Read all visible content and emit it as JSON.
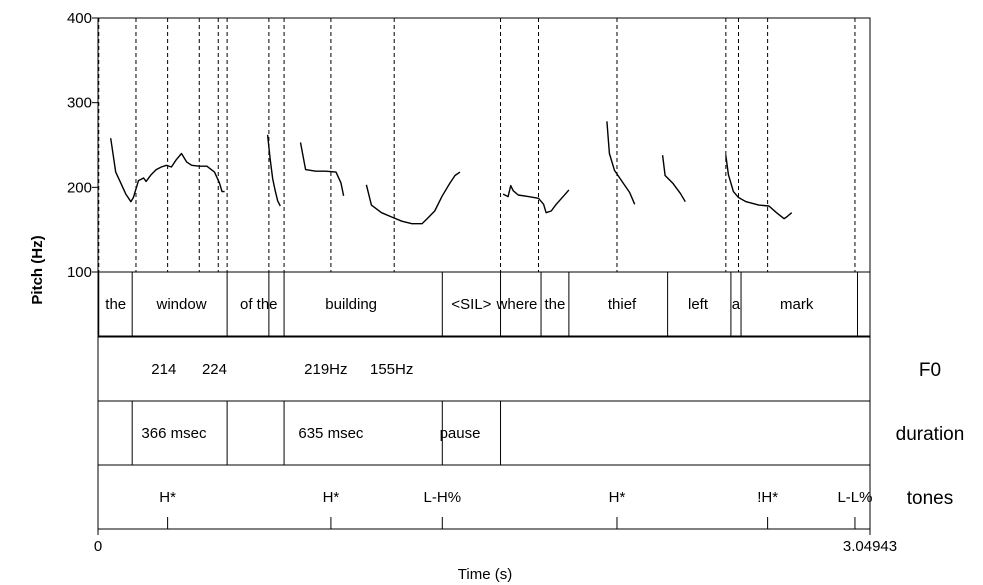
{
  "chart_data": {
    "type": "line",
    "ylabel": "Pitch (Hz)",
    "xlabel": "Time (s)",
    "xlim": [
      0,
      3.04943
    ],
    "ylim": [
      100,
      400
    ],
    "y_ticks": [
      "100",
      "200",
      "300",
      "400"
    ],
    "x_tick_labels": [
      "0",
      "3.04943"
    ],
    "grid": false,
    "series": [
      {
        "values": [
          [
            0.05,
            258
          ],
          [
            0.07,
            218
          ],
          [
            0.09,
            205
          ],
          [
            0.11,
            192
          ],
          [
            0.13,
            183
          ],
          [
            0.14,
            188
          ],
          [
            0.16,
            208
          ],
          [
            0.18,
            211
          ],
          [
            0.19,
            207
          ],
          [
            0.21,
            215
          ],
          [
            0.23,
            221
          ],
          [
            0.25,
            224
          ],
          [
            0.27,
            226
          ],
          [
            0.29,
            224
          ],
          [
            0.31,
            233
          ],
          [
            0.33,
            240
          ],
          [
            0.35,
            230
          ],
          [
            0.37,
            226
          ],
          [
            0.4,
            225
          ],
          [
            0.43,
            225
          ],
          [
            0.46,
            218
          ],
          [
            0.48,
            205
          ],
          [
            0.49,
            195
          ],
          [
            0.5,
            195
          ]
        ]
      },
      {
        "values": [
          [
            0.67,
            262
          ],
          [
            0.68,
            233
          ],
          [
            0.69,
            210
          ],
          [
            0.7,
            196
          ],
          [
            0.71,
            184
          ],
          [
            0.72,
            178
          ]
        ]
      },
      {
        "values": [
          [
            0.8,
            253
          ],
          [
            0.82,
            221
          ],
          [
            0.86,
            219
          ],
          [
            0.9,
            219
          ],
          [
            0.94,
            218
          ],
          [
            0.96,
            205
          ],
          [
            0.97,
            190
          ]
        ]
      },
      {
        "values": [
          [
            1.06,
            203
          ],
          [
            1.08,
            179
          ],
          [
            1.12,
            170
          ],
          [
            1.16,
            165
          ],
          [
            1.2,
            160
          ],
          [
            1.24,
            157
          ],
          [
            1.28,
            157
          ],
          [
            1.3,
            163
          ],
          [
            1.33,
            172
          ],
          [
            1.36,
            190
          ],
          [
            1.39,
            205
          ],
          [
            1.41,
            214
          ],
          [
            1.43,
            218
          ]
        ]
      },
      {
        "values": [
          [
            1.6,
            192
          ],
          [
            1.62,
            189
          ],
          [
            1.63,
            202
          ],
          [
            1.64,
            196
          ],
          [
            1.66,
            191
          ],
          [
            1.7,
            189
          ],
          [
            1.74,
            187
          ],
          [
            1.76,
            180
          ],
          [
            1.77,
            170
          ],
          [
            1.79,
            172
          ],
          [
            1.81,
            180
          ],
          [
            1.84,
            190
          ],
          [
            1.86,
            197
          ]
        ]
      },
      {
        "values": [
          [
            2.01,
            278
          ],
          [
            2.02,
            240
          ],
          [
            2.04,
            220
          ],
          [
            2.07,
            207
          ],
          [
            2.1,
            194
          ],
          [
            2.12,
            180
          ]
        ]
      },
      {
        "values": [
          [
            2.23,
            238
          ],
          [
            2.24,
            214
          ],
          [
            2.27,
            205
          ],
          [
            2.3,
            193
          ],
          [
            2.32,
            183
          ]
        ]
      },
      {
        "values": [
          [
            2.48,
            238
          ],
          [
            2.49,
            215
          ],
          [
            2.51,
            195
          ],
          [
            2.53,
            188
          ],
          [
            2.56,
            183
          ],
          [
            2.61,
            179
          ],
          [
            2.65,
            178
          ],
          [
            2.68,
            170
          ],
          [
            2.71,
            163
          ],
          [
            2.72,
            165
          ],
          [
            2.74,
            170
          ]
        ]
      }
    ],
    "dashed_markers": [
      0.003,
      0.15,
      0.275,
      0.4,
      0.475,
      0.51,
      0.675,
      0.735,
      0.92,
      1.17,
      1.59,
      1.74,
      2.05,
      2.48,
      2.53,
      2.645,
      2.99
    ],
    "tiers": [
      {
        "name": "",
        "boundaries": [
          0.003,
          0.135,
          0.51,
          0.675,
          0.735,
          1.36,
          1.59,
          1.75,
          1.86,
          2.25,
          2.5,
          2.54,
          3.0
        ],
        "labels": [
          {
            "t": 0.07,
            "text": "the"
          },
          {
            "t": 0.33,
            "text": "window"
          },
          {
            "t": 0.635,
            "text": "of the"
          },
          {
            "t": 1.0,
            "text": "building"
          },
          {
            "t": 1.475,
            "text": "<SIL>"
          },
          {
            "t": 1.655,
            "text": "where"
          },
          {
            "t": 1.805,
            "text": "the"
          },
          {
            "t": 2.07,
            "text": "thief"
          },
          {
            "t": 2.37,
            "text": "left"
          },
          {
            "t": 2.52,
            "text": "a"
          },
          {
            "t": 2.76,
            "text": "mark"
          }
        ]
      },
      {
        "name": "F0",
        "boundaries": [],
        "labels": [
          {
            "t": 0.26,
            "text": "214"
          },
          {
            "t": 0.46,
            "text": "224"
          },
          {
            "t": 0.9,
            "text": "219Hz"
          },
          {
            "t": 1.16,
            "text": "155Hz"
          }
        ]
      },
      {
        "name": "duration",
        "boundaries": [
          0.135,
          0.51,
          0.735,
          1.36,
          1.59
        ],
        "labels": [
          {
            "t": 0.3,
            "text": "366 msec"
          },
          {
            "t": 0.92,
            "text": "635 msec"
          },
          {
            "t": 1.43,
            "text": "pause"
          }
        ]
      },
      {
        "name": "tones",
        "boundaries": [],
        "labels": [
          {
            "t": 0.275,
            "text": "H*",
            "mark": true
          },
          {
            "t": 0.92,
            "text": "H*",
            "mark": true
          },
          {
            "t": 1.36,
            "text": "L-H%",
            "mark": true
          },
          {
            "t": 2.05,
            "text": "H*",
            "mark": true
          },
          {
            "t": 2.645,
            "text": "!H*",
            "mark": true
          },
          {
            "t": 2.99,
            "text": "L-L%",
            "mark": true
          }
        ]
      }
    ]
  }
}
